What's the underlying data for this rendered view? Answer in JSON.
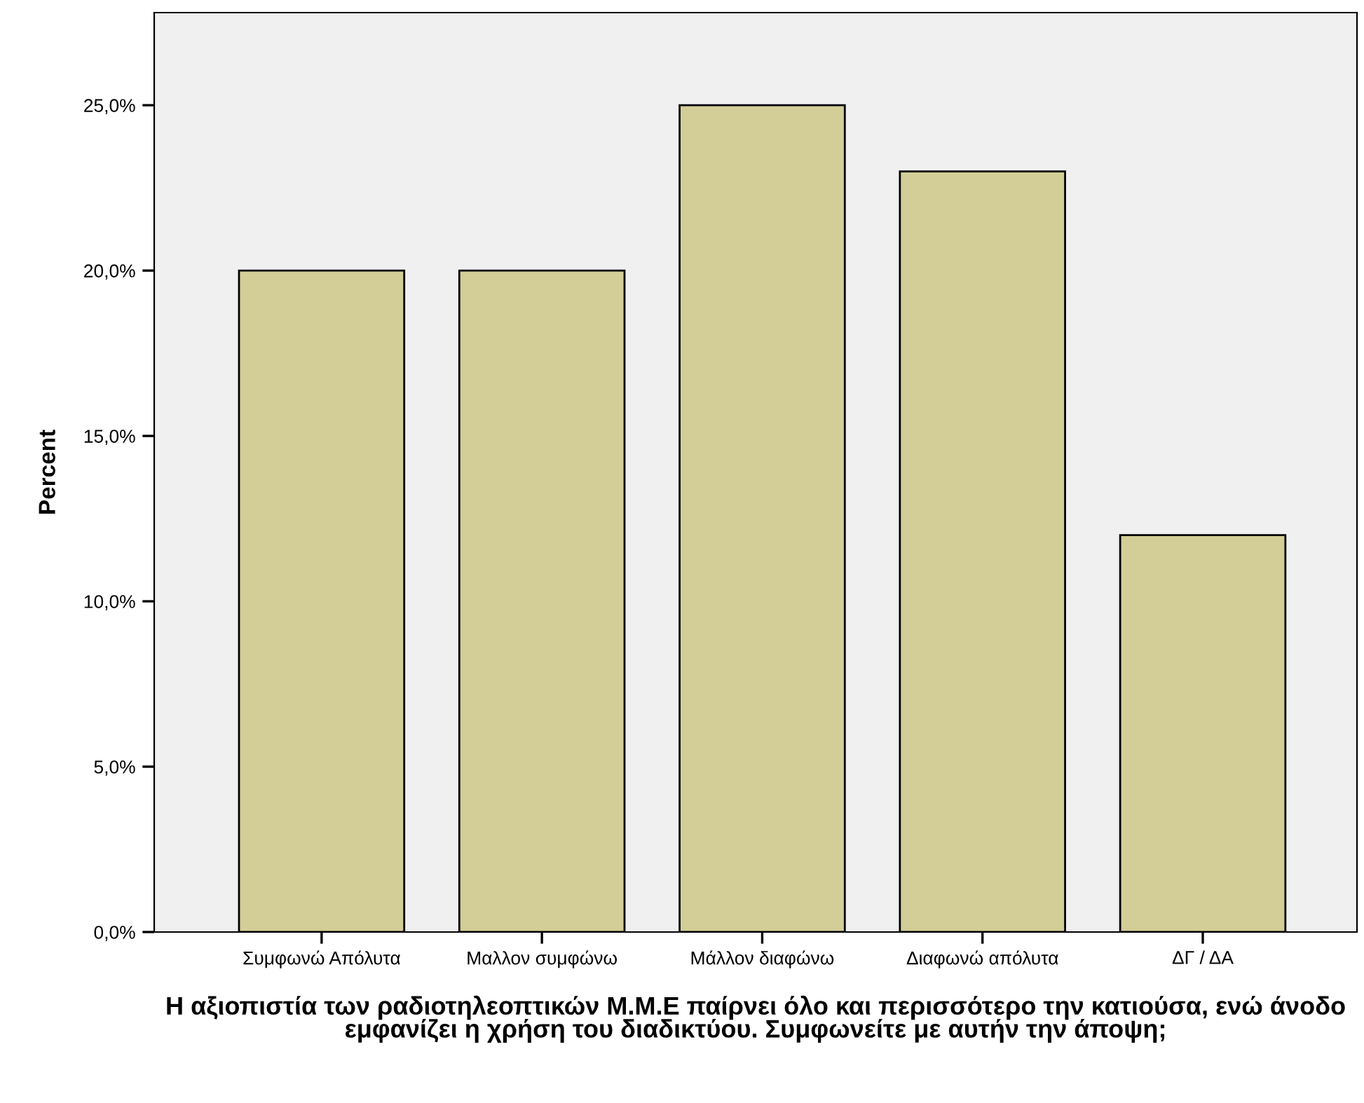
{
  "chart_data": {
    "type": "bar",
    "xlabel": "Η αξιοπιστία των ραδιοτηλεοπτικών Μ.Μ.Ε παίρνει όλο και περισσότερο την κατιούσα, ενώ άνοδο εμφανίζει η χρήση του διαδικτύου. Συμφωνείτε με αυτήν την άποψη;",
    "ylabel": "Percent",
    "categories": [
      "Συμφωνώ Απόλυτα",
      "Μαλλον συμφώνω",
      "Μάλλον διαφώνω",
      "Διαφωνώ απόλυτα",
      "ΔΓ / ΔΑ"
    ],
    "values": [
      20,
      20,
      25,
      23,
      12
    ],
    "color": "#d3ce97",
    "ylim": [
      0,
      27.8
    ],
    "yticks": [
      {
        "value": 0,
        "label": "0,0%"
      },
      {
        "value": 5,
        "label": "5,0%"
      },
      {
        "value": 10,
        "label": "10,0%"
      },
      {
        "value": 15,
        "label": "15,0%"
      },
      {
        "value": 20,
        "label": "20,0%"
      },
      {
        "value": 25,
        "label": "25,0%"
      }
    ],
    "grid": false,
    "legend": false
  }
}
